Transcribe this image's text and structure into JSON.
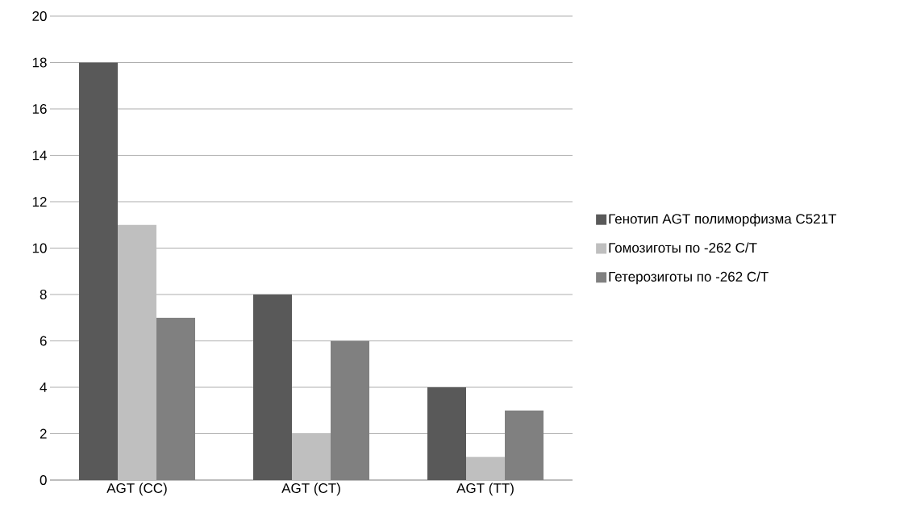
{
  "chart_data": {
    "type": "bar",
    "categories": [
      "AGT (CC)",
      "AGT (CT)",
      "AGT (TT)"
    ],
    "series": [
      {
        "name": "Генотип AGT полиморфизма C521T",
        "color": "#595959",
        "values": [
          18,
          8,
          4
        ]
      },
      {
        "name": "Гомозиготы по -262 C/T",
        "color": "#bfbfbf",
        "values": [
          11,
          2,
          1
        ]
      },
      {
        "name": "Гетерозиготы по -262 C/T",
        "color": "#808080",
        "values": [
          7,
          6,
          3
        ]
      }
    ],
    "ylim": [
      0,
      20
    ],
    "yticks": [
      0,
      2,
      4,
      6,
      8,
      10,
      12,
      14,
      16,
      18,
      20
    ],
    "grid": "y",
    "legend": "right"
  }
}
